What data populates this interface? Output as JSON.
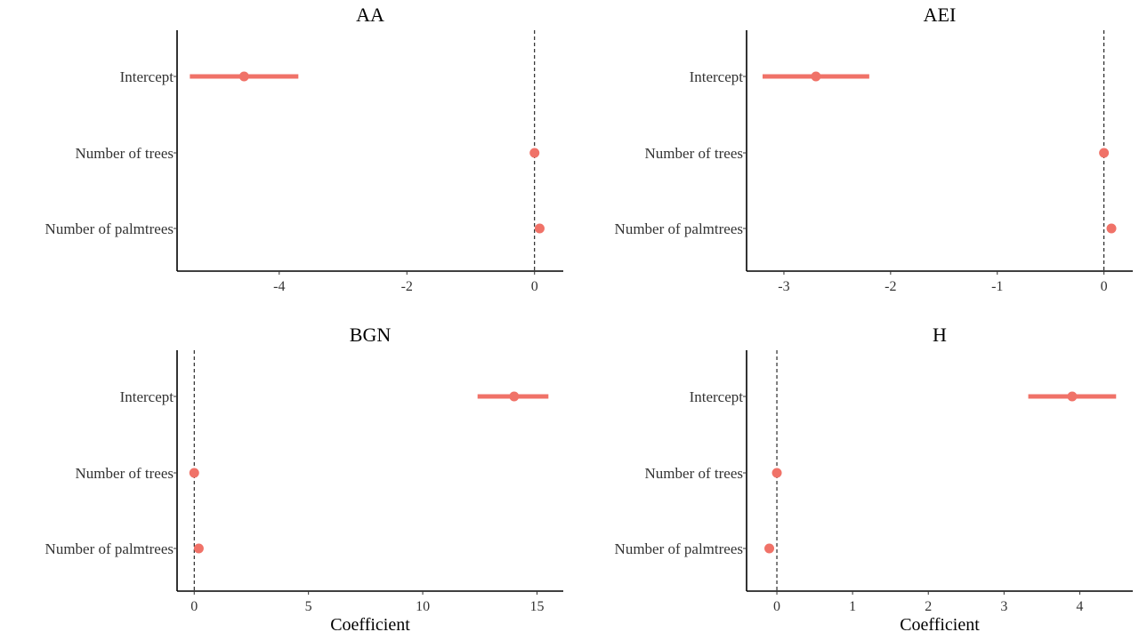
{
  "chart_data": [
    {
      "type": "forest",
      "title": "AA",
      "xlabel": "",
      "categories": [
        "Intercept",
        "Number of trees",
        "Number of palmtrees"
      ],
      "estimates": [
        -4.55,
        0.0,
        0.08
      ],
      "ci_low": [
        -5.4,
        0.0,
        0.08
      ],
      "ci_high": [
        -3.7,
        0.0,
        0.08
      ],
      "xlim": [
        -5.6,
        0.45
      ],
      "xticks": [
        -4,
        -2,
        0
      ],
      "xtick_labels": [
        "-4",
        "-2",
        "0"
      ],
      "reference_line": 0
    },
    {
      "type": "forest",
      "title": "AEI",
      "xlabel": "",
      "categories": [
        "Intercept",
        "Number of trees",
        "Number of palmtrees"
      ],
      "estimates": [
        -2.7,
        0.0,
        0.07
      ],
      "ci_low": [
        -3.2,
        0.0,
        0.07
      ],
      "ci_high": [
        -2.2,
        0.0,
        0.07
      ],
      "xlim": [
        -3.35,
        0.27
      ],
      "xticks": [
        -3,
        -2,
        -1,
        0
      ],
      "xtick_labels": [
        "-3",
        "-2",
        "-1",
        "0"
      ],
      "reference_line": 0
    },
    {
      "type": "forest",
      "title": "BGN",
      "xlabel": "Coefficient",
      "categories": [
        "Intercept",
        "Number of trees",
        "Number of palmtrees"
      ],
      "estimates": [
        14.0,
        0.0,
        0.2
      ],
      "ci_low": [
        12.4,
        0.0,
        0.2
      ],
      "ci_high": [
        15.5,
        0.0,
        0.2
      ],
      "xlim": [
        -0.75,
        16.15
      ],
      "xticks": [
        0,
        5,
        10,
        15
      ],
      "xtick_labels": [
        "0",
        "5",
        "10",
        "15"
      ],
      "reference_line": 0
    },
    {
      "type": "forest",
      "title": "H",
      "xlabel": "Coefficient",
      "categories": [
        "Intercept",
        "Number of trees",
        "Number of palmtrees"
      ],
      "estimates": [
        3.9,
        0.0,
        -0.1
      ],
      "ci_low": [
        3.32,
        0.0,
        -0.1
      ],
      "ci_high": [
        4.48,
        0.0,
        -0.1
      ],
      "xlim": [
        -0.4,
        4.7
      ],
      "xticks": [
        0,
        1,
        2,
        3,
        4
      ],
      "xtick_labels": [
        "0",
        "1",
        "2",
        "3",
        "4"
      ],
      "reference_line": 0
    }
  ],
  "colors": {
    "estimate": "#F07268",
    "axis": "#000000",
    "text": "#333333"
  }
}
